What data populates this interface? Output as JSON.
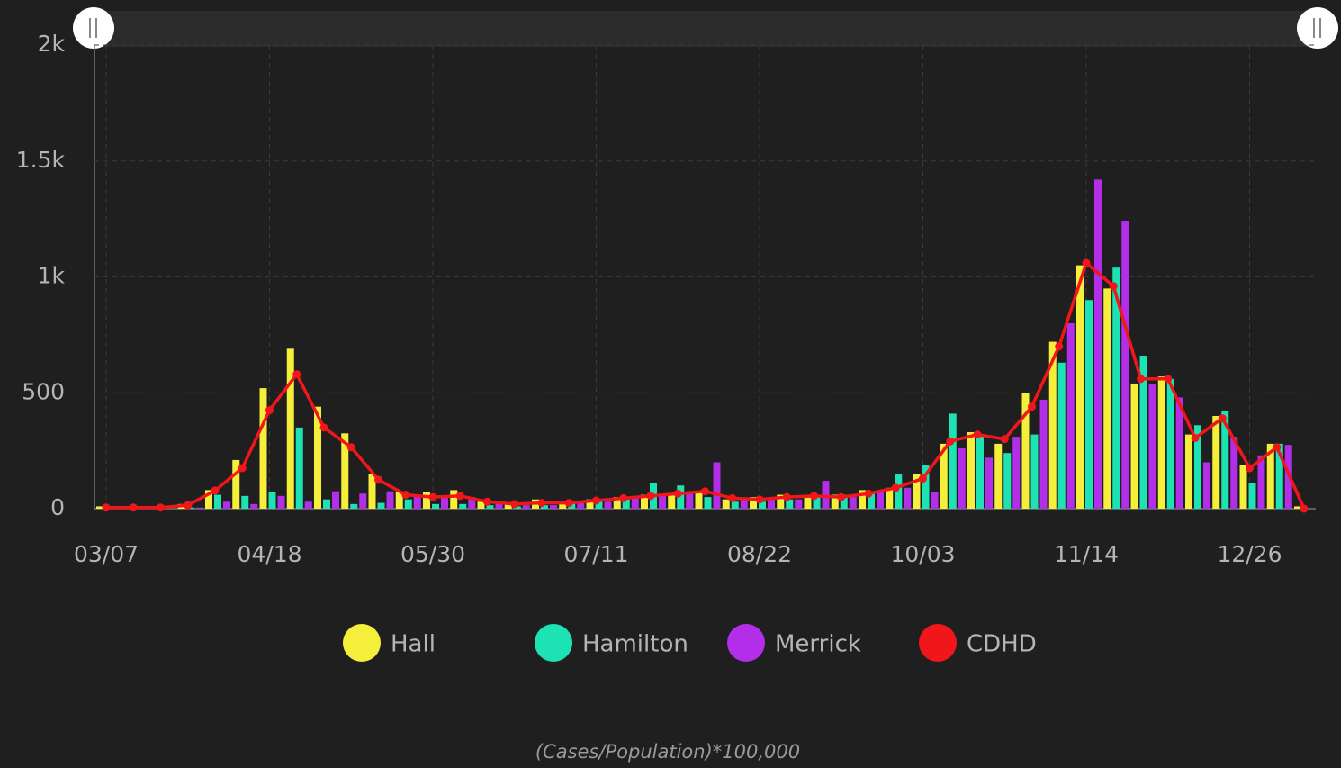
{
  "chart_data": {
    "type": "bar",
    "categories": [
      "03/07",
      null,
      null,
      null,
      null,
      null,
      "04/18",
      null,
      null,
      null,
      null,
      null,
      "05/30",
      null,
      null,
      null,
      null,
      null,
      "07/11",
      null,
      null,
      null,
      null,
      null,
      "08/22",
      null,
      null,
      null,
      null,
      null,
      "10/03",
      null,
      null,
      null,
      null,
      null,
      "11/14",
      null,
      null,
      null,
      null,
      null,
      "12/26",
      null,
      null
    ],
    "series": [
      {
        "name": "Hall",
        "color": "#f5ee3a",
        "values": [
          10,
          10,
          10,
          20,
          80,
          210,
          520,
          690,
          440,
          325,
          150,
          70,
          70,
          80,
          30,
          20,
          40,
          30,
          40,
          50,
          60,
          60,
          70,
          40,
          50,
          60,
          60,
          60,
          80,
          90,
          150,
          280,
          330,
          280,
          500,
          720,
          1050,
          950,
          540,
          570,
          320,
          400,
          190,
          280,
          10
        ]
      },
      {
        "name": "Hamilton",
        "color": "#1de2b4",
        "values": [
          0,
          0,
          5,
          5,
          60,
          55,
          70,
          350,
          40,
          20,
          25,
          40,
          20,
          20,
          15,
          10,
          15,
          25,
          30,
          40,
          110,
          100,
          50,
          30,
          30,
          40,
          50,
          60,
          70,
          150,
          190,
          410,
          320,
          240,
          320,
          630,
          900,
          1040,
          660,
          560,
          360,
          420,
          110,
          280,
          0
        ]
      },
      {
        "name": "Merrick",
        "color": "#b22ee8",
        "values": [
          0,
          0,
          0,
          5,
          30,
          20,
          55,
          30,
          75,
          65,
          75,
          60,
          50,
          50,
          25,
          15,
          15,
          30,
          30,
          50,
          60,
          70,
          200,
          40,
          50,
          40,
          120,
          50,
          80,
          90,
          70,
          260,
          220,
          310,
          470,
          800,
          1420,
          1240,
          540,
          480,
          200,
          310,
          230,
          275,
          0
        ]
      },
      {
        "name": "CDHD",
        "color": "#f0161a",
        "type": "line",
        "values": [
          5,
          5,
          5,
          15,
          78,
          175,
          425,
          580,
          350,
          265,
          125,
          60,
          50,
          55,
          30,
          20,
          25,
          25,
          35,
          45,
          55,
          65,
          75,
          45,
          40,
          50,
          55,
          50,
          65,
          90,
          130,
          290,
          320,
          300,
          440,
          700,
          1060,
          960,
          560,
          560,
          305,
          390,
          175,
          265,
          0
        ]
      }
    ],
    "ylim": [
      0,
      2000
    ],
    "yticks": [
      0,
      500,
      {
        "value": 1000,
        "label": "1k"
      },
      {
        "value": 1500,
        "label": "1.5k"
      },
      {
        "value": 2000,
        "label": "2k"
      }
    ],
    "grid": true,
    "legend": "bottom",
    "y_axis_title": "(Cases/Population)*100,000"
  }
}
